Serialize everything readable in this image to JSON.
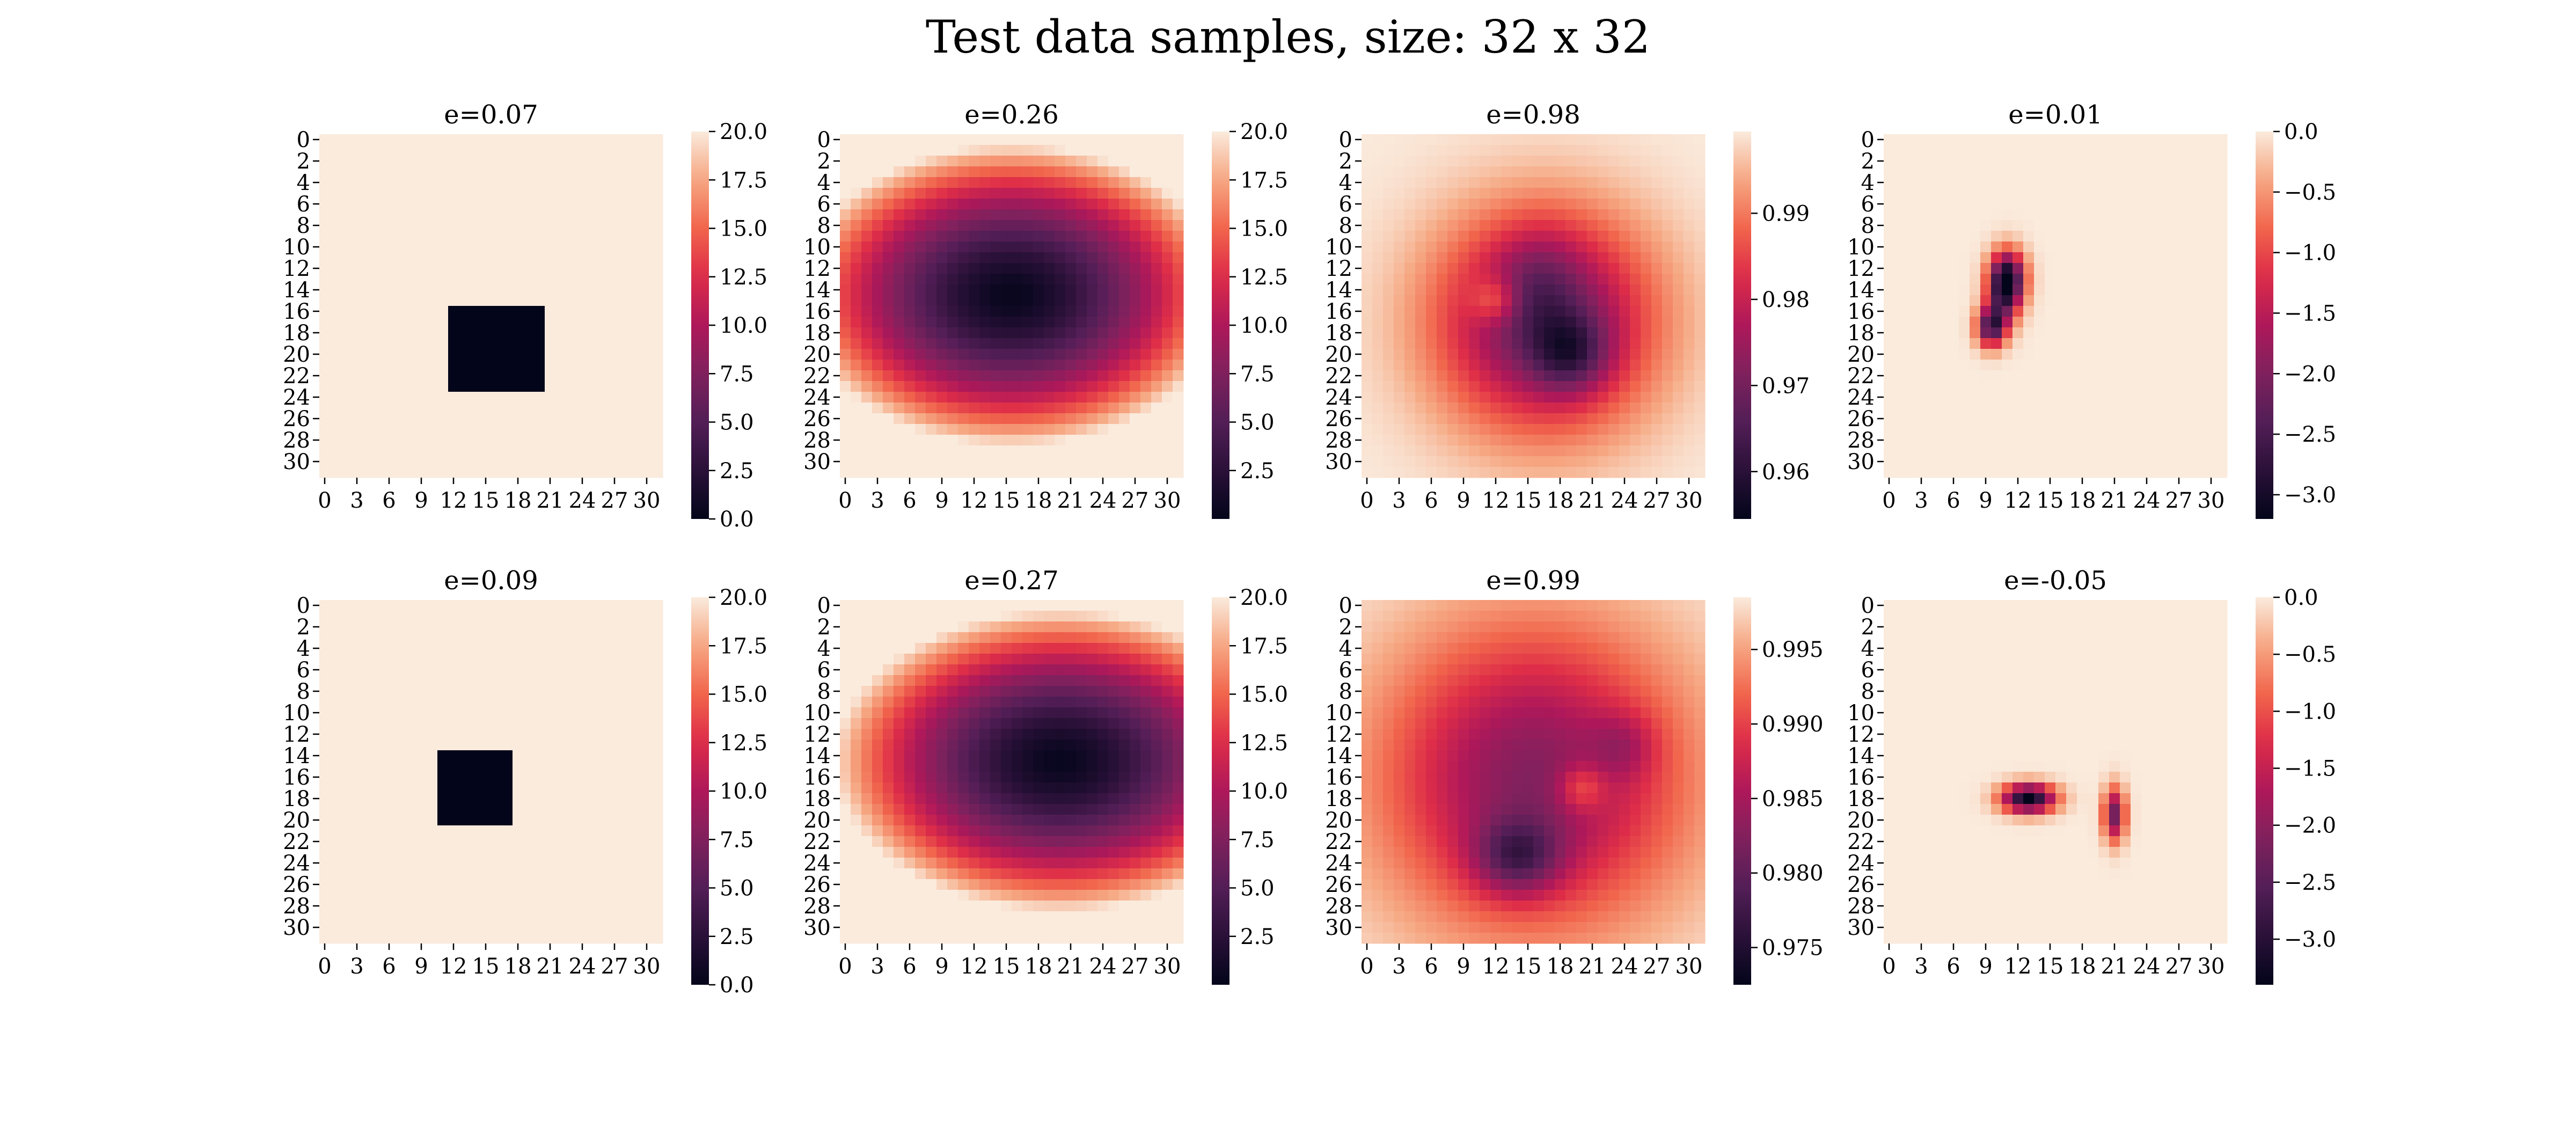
{
  "figure": {
    "suptitle": "Test data samples, size: 32 x 32"
  },
  "chart_data": [
    {
      "type": "heatmap",
      "title": "e=0.07",
      "grid_size": [
        32,
        32
      ],
      "x_tick_labels": [
        "0",
        "3",
        "6",
        "9",
        "12",
        "15",
        "18",
        "21",
        "24",
        "27",
        "30"
      ],
      "y_tick_labels": [
        "0",
        "2",
        "4",
        "6",
        "8",
        "10",
        "12",
        "14",
        "16",
        "18",
        "20",
        "22",
        "24",
        "26",
        "28",
        "30"
      ],
      "colorbar": {
        "vmin": 0.0,
        "vmax": 20.0,
        "ticks": [
          0.0,
          2.5,
          5.0,
          7.5,
          10.0,
          12.5,
          15.0,
          17.5,
          20.0
        ],
        "tick_labels": [
          "0.0",
          "2.5",
          "5.0",
          "7.5",
          "10.0",
          "12.5",
          "15.0",
          "17.5",
          "20.0"
        ]
      },
      "field": {
        "kind": "rect",
        "background": 20.0,
        "inside": 0.0,
        "rows": [
          16,
          23
        ],
        "cols": [
          12,
          20
        ]
      }
    },
    {
      "type": "heatmap",
      "title": "e=0.26",
      "grid_size": [
        32,
        32
      ],
      "x_tick_labels": [
        "0",
        "3",
        "6",
        "9",
        "12",
        "15",
        "18",
        "21",
        "24",
        "27",
        "30"
      ],
      "y_tick_labels": [
        "0",
        "2",
        "4",
        "6",
        "8",
        "10",
        "12",
        "14",
        "16",
        "18",
        "20",
        "22",
        "24",
        "26",
        "28",
        "30"
      ],
      "colorbar": {
        "vmin": 0.0,
        "vmax": 20.0,
        "ticks": [
          2.5,
          5.0,
          7.5,
          10.0,
          12.5,
          15.0,
          17.5,
          20.0
        ],
        "tick_labels": [
          "2.5",
          "5.0",
          "7.5",
          "10.0",
          "12.5",
          "15.0",
          "17.5",
          "20.0"
        ]
      },
      "field": {
        "kind": "ellipse",
        "center": [
          14.5,
          15.5
        ],
        "radii": [
          14,
          20
        ],
        "min": 0.3,
        "max": 20.0,
        "power": 1.6
      }
    },
    {
      "type": "heatmap",
      "title": "e=0.98",
      "grid_size": [
        32,
        32
      ],
      "x_tick_labels": [
        "0",
        "3",
        "6",
        "9",
        "12",
        "15",
        "18",
        "21",
        "24",
        "27",
        "30"
      ],
      "y_tick_labels": [
        "0",
        "2",
        "4",
        "6",
        "8",
        "10",
        "12",
        "14",
        "16",
        "18",
        "20",
        "22",
        "24",
        "26",
        "28",
        "30"
      ],
      "colorbar": {
        "vmin": 0.9545,
        "vmax": 0.9995,
        "ticks": [
          0.96,
          0.97,
          0.98,
          0.99
        ],
        "tick_labels": [
          "0.96",
          "0.97",
          "0.98",
          "0.99"
        ]
      },
      "field": {
        "kind": "blobs",
        "base": 0.9995,
        "blobs": [
          {
            "center": [
              17,
              16.5
            ],
            "radii": [
              10,
              10
            ],
            "amp": -0.032
          },
          {
            "center": [
              20,
              19
            ],
            "radii": [
              3.5,
              3.5
            ],
            "amp": -0.014
          },
          {
            "center": [
              13,
              16
            ],
            "radii": [
              5,
              4
            ],
            "amp": -0.006
          },
          {
            "center": [
              15,
              12
            ],
            "radii": [
              2.2,
              2.2
            ],
            "amp": 0.012
          }
        ]
      }
    },
    {
      "type": "heatmap",
      "title": "e=0.01",
      "grid_size": [
        32,
        32
      ],
      "x_tick_labels": [
        "0",
        "3",
        "6",
        "9",
        "12",
        "15",
        "18",
        "21",
        "24",
        "27",
        "30"
      ],
      "y_tick_labels": [
        "0",
        "2",
        "4",
        "6",
        "8",
        "10",
        "12",
        "14",
        "16",
        "18",
        "20",
        "22",
        "24",
        "26",
        "28",
        "30"
      ],
      "colorbar": {
        "vmin": -3.2,
        "vmax": 0.0,
        "ticks": [
          0.0,
          -0.5,
          -1.0,
          -1.5,
          -2.0,
          -2.5,
          -3.0
        ],
        "tick_labels": [
          "0.0",
          "−0.5",
          "−1.0",
          "−1.5",
          "−2.0",
          "−2.5",
          "−3.0"
        ]
      },
      "field": {
        "kind": "blobs",
        "base": 0.0,
        "blobs": [
          {
            "center": [
              13,
              11
            ],
            "radii": [
              2.5,
              1.6
            ],
            "amp": -3.2
          },
          {
            "center": [
              17.5,
              9.5
            ],
            "radii": [
              1.8,
              1.3
            ],
            "amp": -2.4
          },
          {
            "center": [
              15.5,
              10.5
            ],
            "radii": [
              2.5,
              1.5
            ],
            "amp": -1.2
          }
        ]
      }
    },
    {
      "type": "heatmap",
      "title": "e=0.09",
      "grid_size": [
        32,
        32
      ],
      "x_tick_labels": [
        "0",
        "3",
        "6",
        "9",
        "12",
        "15",
        "18",
        "21",
        "24",
        "27",
        "30"
      ],
      "y_tick_labels": [
        "0",
        "2",
        "4",
        "6",
        "8",
        "10",
        "12",
        "14",
        "16",
        "18",
        "20",
        "22",
        "24",
        "26",
        "28",
        "30"
      ],
      "colorbar": {
        "vmin": 0.0,
        "vmax": 20.0,
        "ticks": [
          0.0,
          2.5,
          5.0,
          7.5,
          10.0,
          12.5,
          15.0,
          17.5,
          20.0
        ],
        "tick_labels": [
          "0.0",
          "2.5",
          "5.0",
          "7.5",
          "10.0",
          "12.5",
          "15.0",
          "17.5",
          "20.0"
        ]
      },
      "field": {
        "kind": "rect",
        "background": 20.0,
        "inside": 0.0,
        "rows": [
          14,
          20
        ],
        "cols": [
          11,
          17
        ]
      }
    },
    {
      "type": "heatmap",
      "title": "e=0.27",
      "grid_size": [
        32,
        32
      ],
      "x_tick_labels": [
        "0",
        "3",
        "6",
        "9",
        "12",
        "15",
        "18",
        "21",
        "24",
        "27",
        "30"
      ],
      "y_tick_labels": [
        "0",
        "2",
        "4",
        "6",
        "8",
        "10",
        "12",
        "14",
        "16",
        "18",
        "20",
        "22",
        "24",
        "26",
        "28",
        "30"
      ],
      "colorbar": {
        "vmin": 0.0,
        "vmax": 20.0,
        "ticks": [
          2.5,
          5.0,
          7.5,
          10.0,
          12.5,
          15.0,
          17.5,
          20.0
        ],
        "tick_labels": [
          "2.5",
          "5.0",
          "7.5",
          "10.0",
          "12.5",
          "15.0",
          "17.5",
          "20.0"
        ]
      },
      "field": {
        "kind": "ellipse",
        "center": [
          14.5,
          20
        ],
        "radii": [
          14,
          21
        ],
        "min": 0.3,
        "max": 20.0,
        "power": 1.6
      }
    },
    {
      "type": "heatmap",
      "title": "e=0.99",
      "grid_size": [
        32,
        32
      ],
      "x_tick_labels": [
        "0",
        "3",
        "6",
        "9",
        "12",
        "15",
        "18",
        "21",
        "24",
        "27",
        "30"
      ],
      "y_tick_labels": [
        "0",
        "2",
        "4",
        "6",
        "8",
        "10",
        "12",
        "14",
        "16",
        "18",
        "20",
        "22",
        "24",
        "26",
        "28",
        "30"
      ],
      "colorbar": {
        "vmin": 0.9725,
        "vmax": 0.9985,
        "ticks": [
          0.975,
          0.98,
          0.985,
          0.99,
          0.995
        ],
        "tick_labels": [
          "0.975",
          "0.980",
          "0.985",
          "0.990",
          "0.995"
        ]
      },
      "field": {
        "kind": "blobs",
        "base": 0.9985,
        "blobs": [
          {
            "center": [
              16,
              15.5
            ],
            "radii": [
              14,
              14
            ],
            "amp": -0.016
          },
          {
            "center": [
              23.5,
              14
            ],
            "radii": [
              3.5,
              4
            ],
            "amp": -0.01
          },
          {
            "center": [
              13,
              24
            ],
            "radii": [
              3,
              3
            ],
            "amp": -0.004
          },
          {
            "center": [
              17,
              20
            ],
            "radii": [
              2.2,
              2.2
            ],
            "amp": 0.006
          }
        ]
      }
    },
    {
      "type": "heatmap",
      "title": "e=-0.05",
      "grid_size": [
        32,
        32
      ],
      "x_tick_labels": [
        "0",
        "3",
        "6",
        "9",
        "12",
        "15",
        "18",
        "21",
        "24",
        "27",
        "30"
      ],
      "y_tick_labels": [
        "0",
        "2",
        "4",
        "6",
        "8",
        "10",
        "12",
        "14",
        "16",
        "18",
        "20",
        "22",
        "24",
        "26",
        "28",
        "30"
      ],
      "colorbar": {
        "vmin": -3.4,
        "vmax": 0.0,
        "ticks": [
          0.0,
          -0.5,
          -1.0,
          -1.5,
          -2.0,
          -2.5,
          -3.0
        ],
        "tick_labels": [
          "0.0",
          "−0.5",
          "−1.0",
          "−1.5",
          "−2.0",
          "−2.5",
          "−3.0"
        ]
      },
      "field": {
        "kind": "blobs",
        "base": 0.0,
        "blobs": [
          {
            "center": [
              18,
              13
            ],
            "radii": [
              1.3,
              2.4
            ],
            "amp": -3.4
          },
          {
            "center": [
              19.5,
              21
            ],
            "radii": [
              2.4,
              1.0
            ],
            "amp": -2.3
          }
        ]
      }
    }
  ]
}
